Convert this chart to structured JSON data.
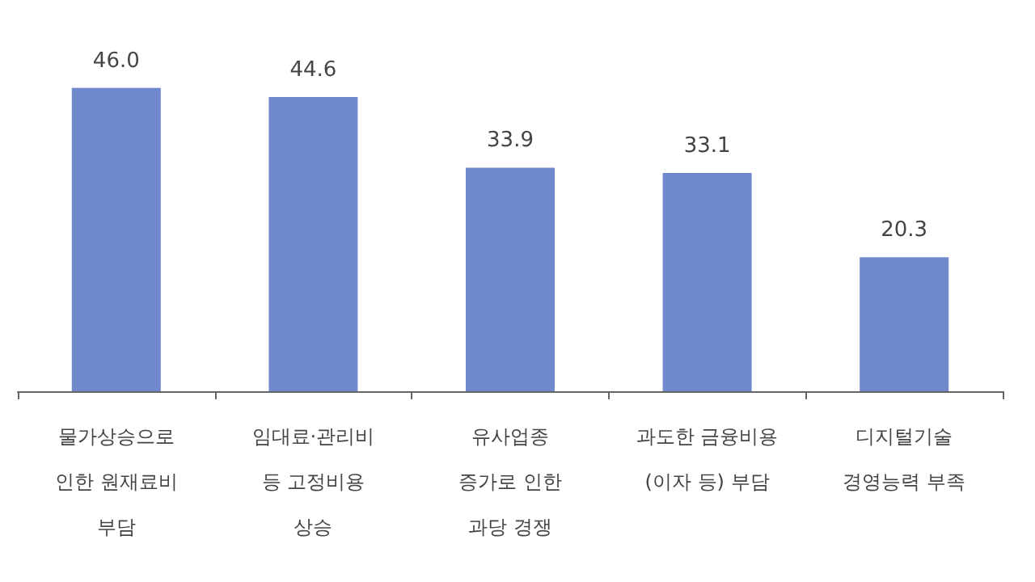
{
  "chart_data": {
    "type": "bar",
    "categories": [
      "물가상승으로\n인한 원재료비\n부담",
      "임대료·관리비\n등 고정비용\n상승",
      "유사업종\n증가로 인한\n과당 경쟁",
      "과도한 금융비용\n(이자 등) 부담",
      "디지털기술\n경영능력 부족"
    ],
    "values": [
      46.0,
      44.6,
      33.9,
      33.1,
      20.3
    ],
    "value_labels": [
      "46.0",
      "44.6",
      "33.9",
      "33.1",
      "20.3"
    ],
    "color": "#7088cc"
  }
}
